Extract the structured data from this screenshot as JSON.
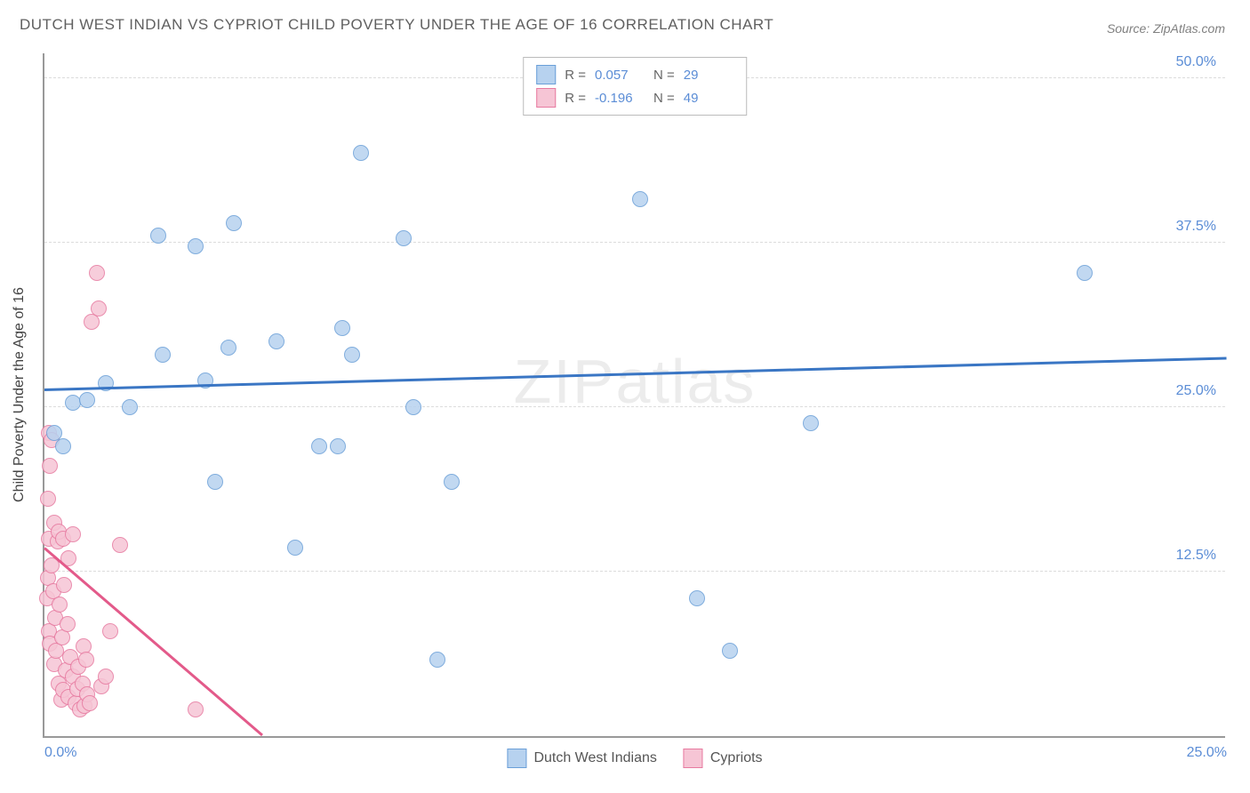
{
  "title": "DUTCH WEST INDIAN VS CYPRIOT CHILD POVERTY UNDER THE AGE OF 16 CORRELATION CHART",
  "source": "Source: ZipAtlas.com",
  "watermark": "ZIPatlas",
  "ylabel": "Child Poverty Under the Age of 16",
  "chart": {
    "type": "scatter",
    "xlim": [
      0,
      25
    ],
    "ylim": [
      0,
      52
    ],
    "xticks": [
      {
        "v": 0,
        "label": "0.0%"
      },
      {
        "v": 25,
        "label": "25.0%"
      }
    ],
    "yticks": [
      {
        "v": 12.5,
        "label": "12.5%"
      },
      {
        "v": 25,
        "label": "25.0%"
      },
      {
        "v": 37.5,
        "label": "37.5%"
      },
      {
        "v": 50,
        "label": "50.0%"
      }
    ],
    "background_color": "#ffffff",
    "grid_color": "#dcdcdc",
    "point_radius": 9,
    "point_border_width": 1.2,
    "series": [
      {
        "name": "Dutch West Indians",
        "fill": "#b7d2ef",
        "stroke": "#6a9fd8",
        "r": 0.057,
        "n": 29,
        "trend": {
          "x1": 0,
          "y1": 26.2,
          "x2": 25,
          "y2": 28.6,
          "color": "#3a76c4",
          "width": 3
        },
        "points": [
          [
            0.2,
            23.0
          ],
          [
            0.4,
            22.0
          ],
          [
            0.6,
            25.3
          ],
          [
            0.9,
            25.5
          ],
          [
            1.3,
            26.8
          ],
          [
            1.8,
            25.0
          ],
          [
            2.4,
            38.0
          ],
          [
            2.5,
            29.0
          ],
          [
            3.2,
            37.2
          ],
          [
            3.4,
            27.0
          ],
          [
            3.6,
            19.3
          ],
          [
            3.9,
            29.5
          ],
          [
            4.0,
            39.0
          ],
          [
            4.9,
            30.0
          ],
          [
            5.3,
            14.3
          ],
          [
            5.8,
            22.0
          ],
          [
            6.2,
            22.0
          ],
          [
            6.3,
            31.0
          ],
          [
            6.5,
            29.0
          ],
          [
            6.7,
            44.3
          ],
          [
            7.6,
            37.8
          ],
          [
            7.8,
            25.0
          ],
          [
            8.3,
            5.8
          ],
          [
            8.6,
            19.3
          ],
          [
            12.6,
            40.8
          ],
          [
            13.8,
            10.5
          ],
          [
            14.5,
            6.5
          ],
          [
            16.2,
            23.8
          ],
          [
            22.0,
            35.2
          ]
        ]
      },
      {
        "name": "Cypriots",
        "fill": "#f6c5d5",
        "stroke": "#e77aa0",
        "r": -0.196,
        "n": 49,
        "trend": {
          "x1": 0,
          "y1": 14.2,
          "x2": 4.6,
          "y2": 0,
          "color": "#e35a8a",
          "width": 3
        },
        "points": [
          [
            0.05,
            10.5
          ],
          [
            0.08,
            12.0
          ],
          [
            0.1,
            8.0
          ],
          [
            0.1,
            15.0
          ],
          [
            0.12,
            7.0
          ],
          [
            0.15,
            13.0
          ],
          [
            0.18,
            11.0
          ],
          [
            0.2,
            5.5
          ],
          [
            0.2,
            16.2
          ],
          [
            0.22,
            9.0
          ],
          [
            0.25,
            6.5
          ],
          [
            0.28,
            14.8
          ],
          [
            0.3,
            4.0
          ],
          [
            0.3,
            15.5
          ],
          [
            0.32,
            10.0
          ],
          [
            0.35,
            2.8
          ],
          [
            0.38,
            7.5
          ],
          [
            0.4,
            15.0
          ],
          [
            0.4,
            3.5
          ],
          [
            0.42,
            11.5
          ],
          [
            0.45,
            5.0
          ],
          [
            0.48,
            8.5
          ],
          [
            0.5,
            3.0
          ],
          [
            0.5,
            13.5
          ],
          [
            0.55,
            6.0
          ],
          [
            0.6,
            4.5
          ],
          [
            0.6,
            15.3
          ],
          [
            0.65,
            2.5
          ],
          [
            0.7,
            3.6
          ],
          [
            0.72,
            5.3
          ],
          [
            0.75,
            2.0
          ],
          [
            0.8,
            4.0
          ],
          [
            0.82,
            6.8
          ],
          [
            0.85,
            2.3
          ],
          [
            0.88,
            5.8
          ],
          [
            0.9,
            3.2
          ],
          [
            0.95,
            2.5
          ],
          [
            1.0,
            31.5
          ],
          [
            1.1,
            35.2
          ],
          [
            1.15,
            32.5
          ],
          [
            1.2,
            3.8
          ],
          [
            1.3,
            4.5
          ],
          [
            1.4,
            8.0
          ],
          [
            1.6,
            14.5
          ],
          [
            0.1,
            23.0
          ],
          [
            0.12,
            20.5
          ],
          [
            0.08,
            18.0
          ],
          [
            3.2,
            2.0
          ],
          [
            0.15,
            22.5
          ]
        ]
      }
    ]
  },
  "legend_bottom": [
    "Dutch West Indians",
    "Cypriots"
  ]
}
